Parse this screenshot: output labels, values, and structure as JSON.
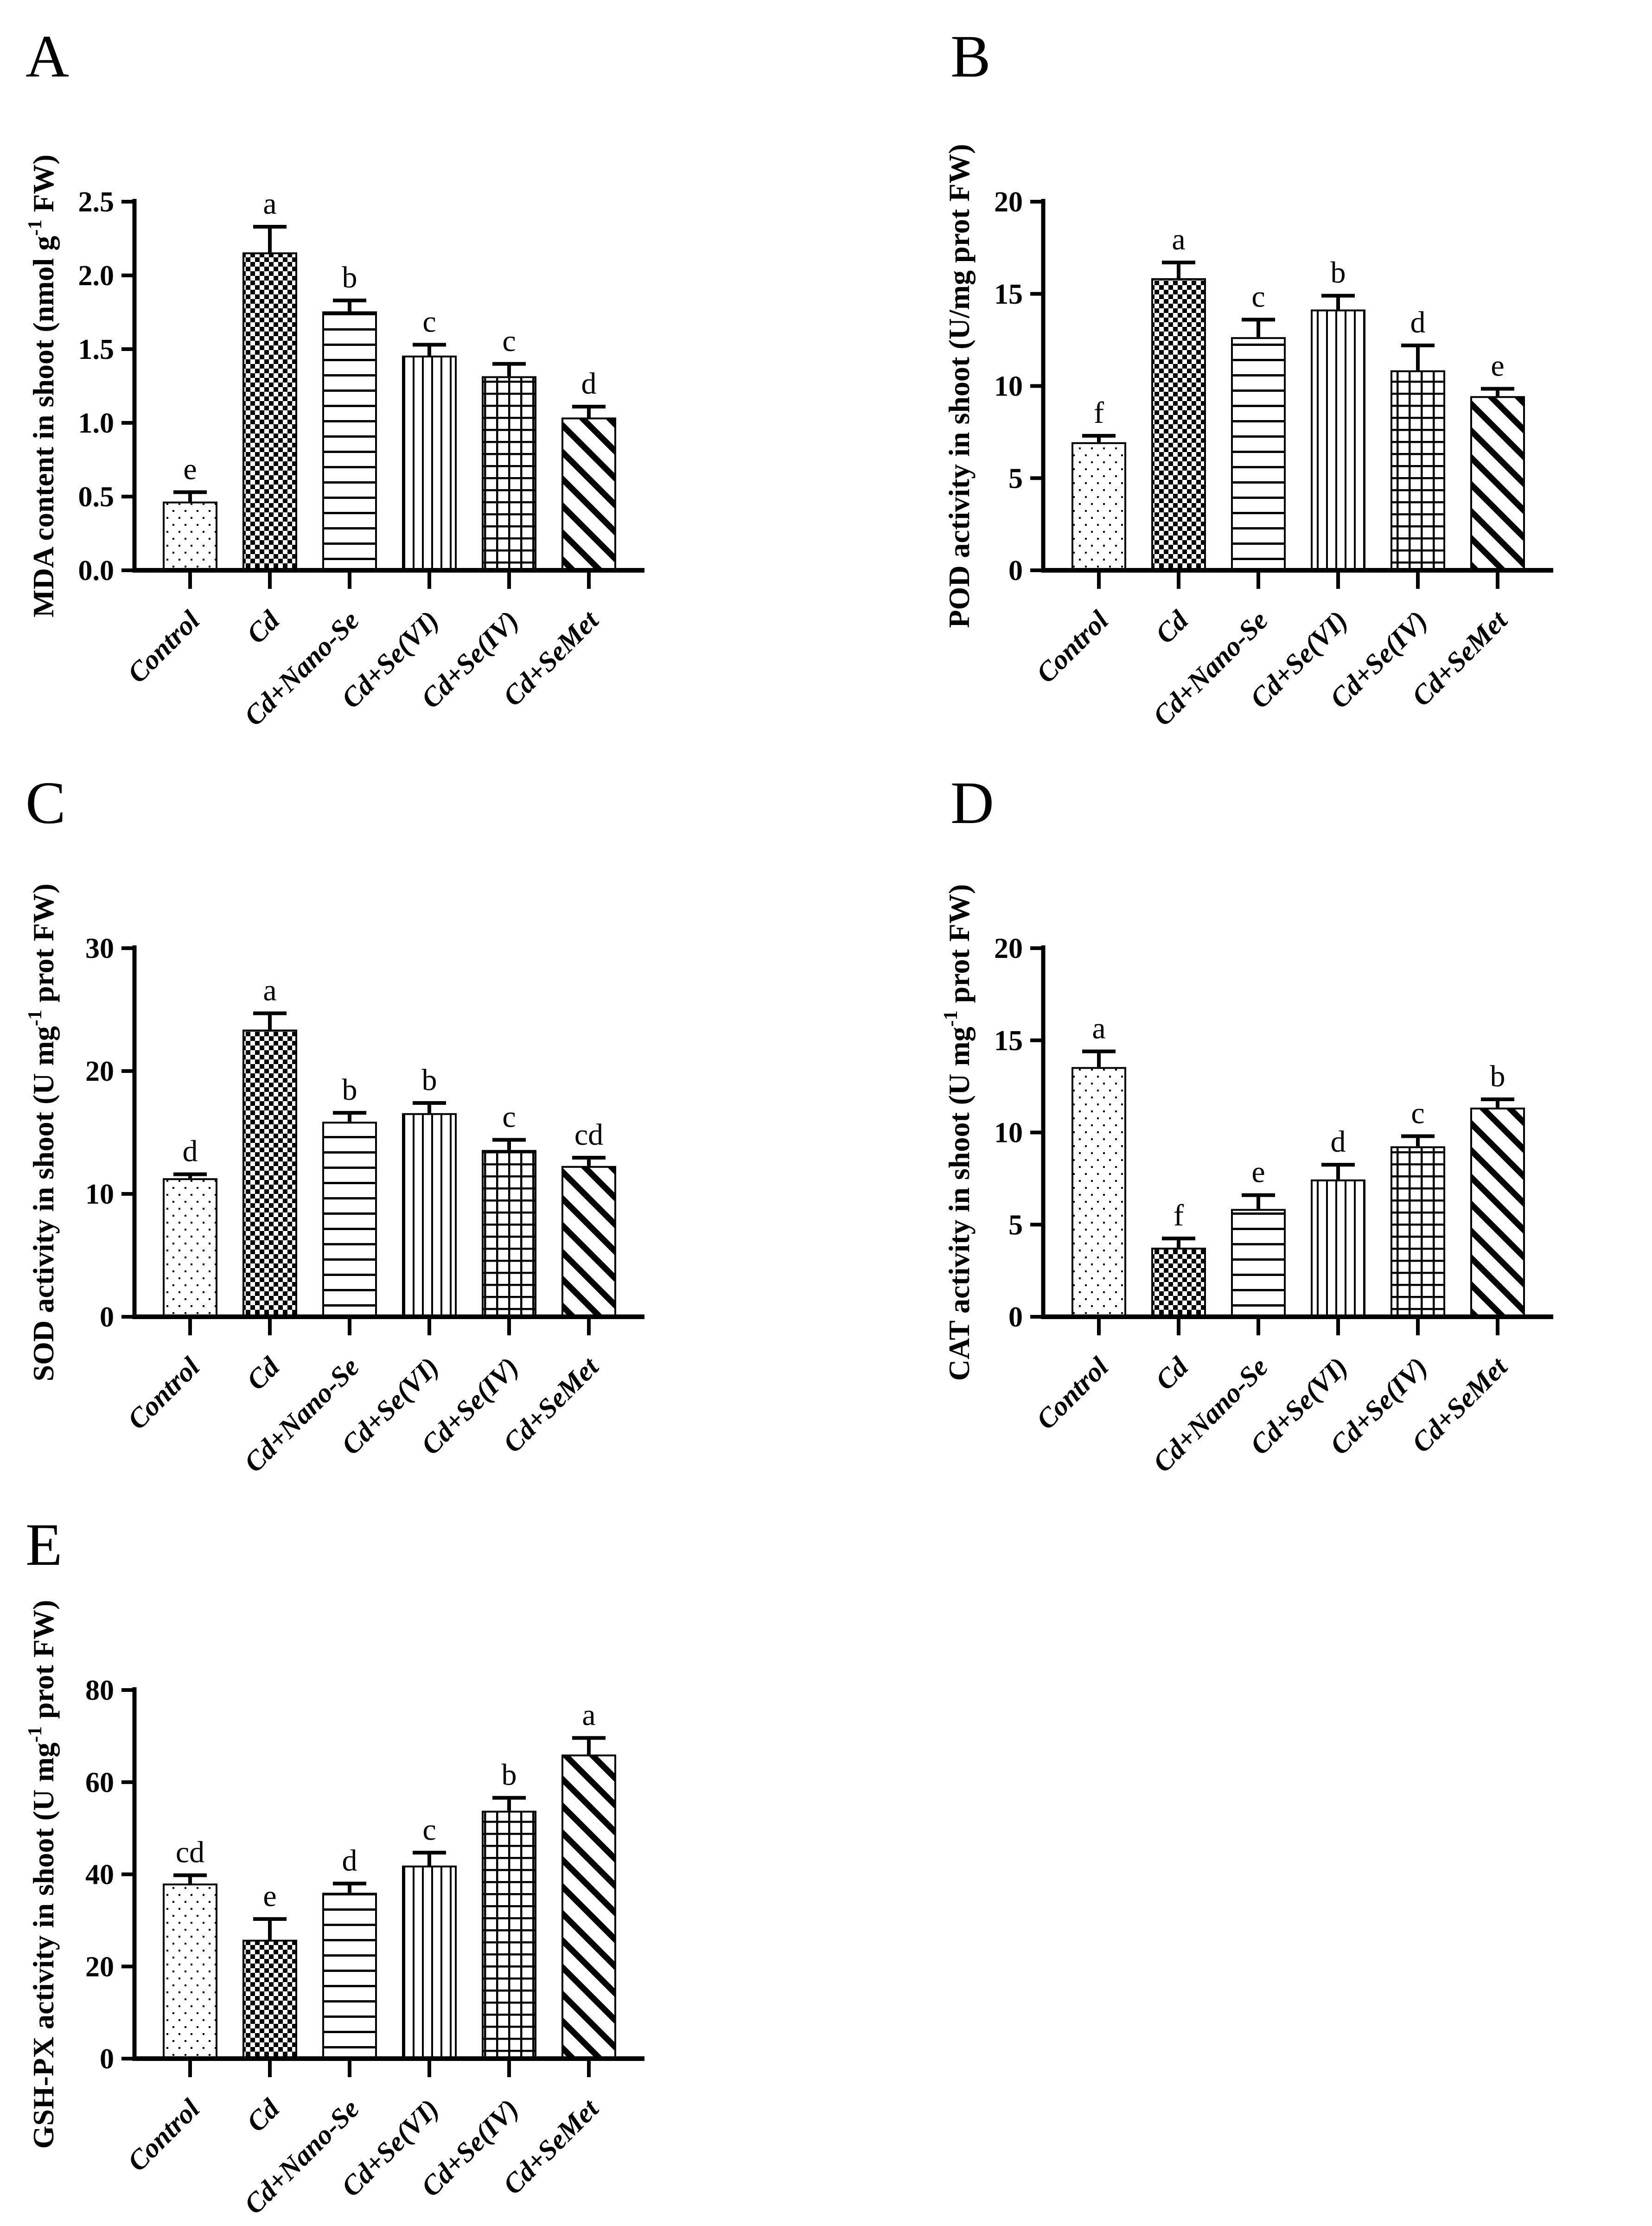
{
  "figure": {
    "background": "#ffffff",
    "ink_color": "#000000",
    "panel_labels": [
      "A",
      "B",
      "C",
      "D",
      "E"
    ]
  },
  "bar_patterns": [
    {
      "category": "Control",
      "pattern": "dotted"
    },
    {
      "category": "Cd",
      "pattern": "checkerboard"
    },
    {
      "category": "Cd+Nano-Se",
      "pattern": "horizontal-lines"
    },
    {
      "category": "Cd+Se(VI)",
      "pattern": "vertical-lines"
    },
    {
      "category": "Cd+Se(IV)",
      "pattern": "grid"
    },
    {
      "category": "Cd+SeMet",
      "pattern": "diagonal-lines"
    }
  ],
  "chart_data": [
    {
      "id": "A",
      "type": "bar",
      "title": "A",
      "ylabel": "MDA content in shoot (nmol g^-1 FW)",
      "xlabel": "",
      "ylim": [
        0,
        2.5
      ],
      "yticks": [
        "0.0",
        "0.5",
        "1.0",
        "1.5",
        "2.0",
        "2.5"
      ],
      "grid": false,
      "legend": "none",
      "categories": [
        "Control",
        "Cd",
        "Cd+Nano-Se",
        "Cd+Se(VI)",
        "Cd+Se(IV)",
        "Cd+SeMet"
      ],
      "values": [
        0.46,
        2.15,
        1.75,
        1.45,
        1.31,
        1.03
      ],
      "errors": [
        0.07,
        0.18,
        0.08,
        0.08,
        0.09,
        0.08
      ],
      "sig_letters": [
        "e",
        "a",
        "b",
        "c",
        "c",
        "d"
      ],
      "bar_patterns": [
        "dotted",
        "checkerboard",
        "horizontal-lines",
        "vertical-lines",
        "grid",
        "diagonal-lines"
      ]
    },
    {
      "id": "B",
      "type": "bar",
      "title": "B",
      "ylabel": "POD activity in shoot (U/mg prot FW)",
      "xlabel": "",
      "ylim": [
        0,
        20
      ],
      "yticks": [
        "0",
        "5",
        "10",
        "15",
        "20"
      ],
      "grid": false,
      "legend": "none",
      "categories": [
        "Control",
        "Cd",
        "Cd+Nano-Se",
        "Cd+Se(VI)",
        "Cd+Se(IV)",
        "Cd+SeMet"
      ],
      "values": [
        6.9,
        15.8,
        12.6,
        14.1,
        10.8,
        9.4
      ],
      "errors": [
        0.4,
        0.9,
        1.0,
        0.8,
        1.4,
        0.45
      ],
      "sig_letters": [
        "f",
        "a",
        "c",
        "b",
        "d",
        "e"
      ],
      "bar_patterns": [
        "dotted",
        "checkerboard",
        "horizontal-lines",
        "vertical-lines",
        "grid",
        "diagonal-lines"
      ]
    },
    {
      "id": "C",
      "type": "bar",
      "title": "C",
      "ylabel": "SOD activity in shoot (U mg^-1 prot FW)",
      "xlabel": "",
      "ylim": [
        0,
        30
      ],
      "yticks": [
        "0",
        "10",
        "20",
        "30"
      ],
      "grid": false,
      "legend": "none",
      "categories": [
        "Control",
        "Cd",
        "Cd+Nano-Se",
        "Cd+Se(VI)",
        "Cd+Se(IV)",
        "Cd+SeMet"
      ],
      "values": [
        11.2,
        23.3,
        15.8,
        16.5,
        13.5,
        12.2
      ],
      "errors": [
        0.4,
        1.4,
        0.8,
        0.9,
        0.9,
        0.75
      ],
      "sig_letters": [
        "d",
        "a",
        "b",
        "b",
        "c",
        "cd"
      ],
      "bar_patterns": [
        "dotted",
        "checkerboard",
        "horizontal-lines",
        "vertical-lines",
        "grid",
        "diagonal-lines"
      ]
    },
    {
      "id": "D",
      "type": "bar",
      "title": "D",
      "ylabel": "CAT activity in shoot (U mg^-1 prot FW)",
      "xlabel": "",
      "ylim": [
        0,
        20
      ],
      "yticks": [
        "0",
        "5",
        "10",
        "15",
        "20"
      ],
      "grid": false,
      "legend": "none",
      "categories": [
        "Control",
        "Cd",
        "Cd+Nano-Se",
        "Cd+Se(VI)",
        "Cd+Se(IV)",
        "Cd+SeMet"
      ],
      "values": [
        13.5,
        3.7,
        5.8,
        7.4,
        9.2,
        11.3
      ],
      "errors": [
        0.9,
        0.55,
        0.8,
        0.85,
        0.6,
        0.5
      ],
      "sig_letters": [
        "a",
        "f",
        "e",
        "d",
        "c",
        "b"
      ],
      "bar_patterns": [
        "dotted",
        "checkerboard",
        "horizontal-lines",
        "vertical-lines",
        "grid",
        "diagonal-lines"
      ]
    },
    {
      "id": "E",
      "type": "bar",
      "title": "E",
      "ylabel": "GSH-PX activity in shoot (U mg^-1 prot FW)",
      "xlabel": "",
      "ylim": [
        0,
        80
      ],
      "yticks": [
        "0",
        "20",
        "40",
        "60",
        "80"
      ],
      "grid": false,
      "legend": "none",
      "categories": [
        "Control",
        "Cd",
        "Cd+Nano-Se",
        "Cd+Se(VI)",
        "Cd+Se(IV)",
        "Cd+SeMet"
      ],
      "values": [
        37.8,
        25.6,
        35.8,
        41.7,
        53.6,
        65.8
      ],
      "errors": [
        2.0,
        4.7,
        2.2,
        3.0,
        3.0,
        3.8
      ],
      "sig_letters": [
        "cd",
        "e",
        "d",
        "c",
        "b",
        "a"
      ],
      "bar_patterns": [
        "dotted",
        "checkerboard",
        "horizontal-lines",
        "vertical-lines",
        "grid",
        "diagonal-lines"
      ]
    }
  ]
}
